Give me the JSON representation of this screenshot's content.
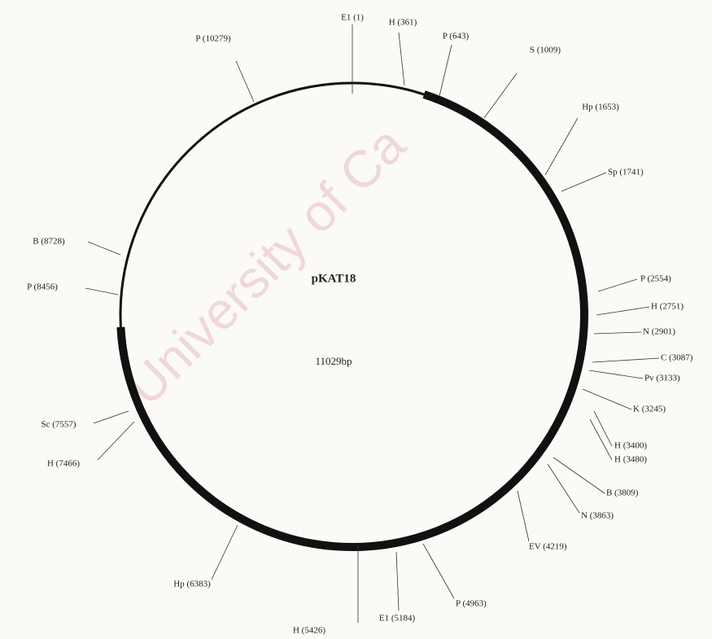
{
  "watermark": "University of Ca",
  "plasmid": {
    "name": "pKAT18",
    "size": "11029bp"
  },
  "sites": [
    {
      "label": "E1 (1)"
    },
    {
      "label": "H (361)"
    },
    {
      "label": "P (643)"
    },
    {
      "label": "S (1009)"
    },
    {
      "label": "Hp (1653)"
    },
    {
      "label": "Sp (1741)"
    },
    {
      "label": "P (2554)"
    },
    {
      "label": "H (2751)"
    },
    {
      "label": "N (2901)"
    },
    {
      "label": "C (3087)"
    },
    {
      "label": "Pv (3133)"
    },
    {
      "label": "K (3245)"
    },
    {
      "label": "H (3400)"
    },
    {
      "label": "H (3480)"
    },
    {
      "label": "B (3809)"
    },
    {
      "label": "N (3863)"
    },
    {
      "label": "EV (4219)"
    },
    {
      "label": "P (4963)"
    },
    {
      "label": "E1 (5184)"
    },
    {
      "label": "H (5426)"
    },
    {
      "label": "Hp (6383)"
    },
    {
      "label": "H (7466)"
    },
    {
      "label": "Sc (7557)"
    },
    {
      "label": "P (8456)"
    },
    {
      "label": "B (8728)"
    },
    {
      "label": "P (10279)"
    }
  ]
}
